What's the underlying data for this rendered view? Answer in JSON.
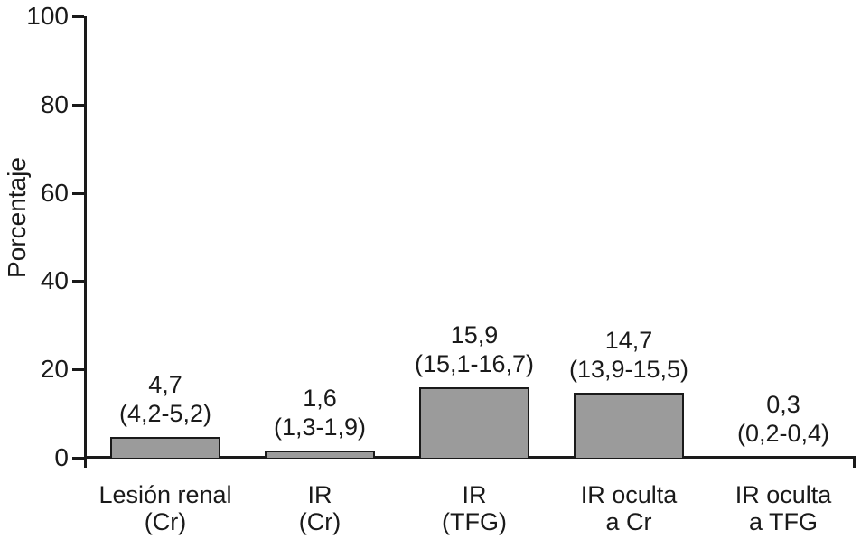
{
  "figure": {
    "background": "#ffffff"
  },
  "chart_data": {
    "type": "bar",
    "title": "",
    "ylabel": "Porcentaje",
    "xlabel": "",
    "ylim": [
      0,
      100
    ],
    "ytick_labels": [
      "0",
      "20",
      "40",
      "60",
      "80",
      "100"
    ],
    "ytick_values": [
      0,
      20,
      40,
      60,
      80,
      100
    ],
    "grid": false,
    "legend": null,
    "categories": [
      "Lesión renal (Cr)",
      "IR (Cr)",
      "IR (TFG)",
      "IR oculta a Cr",
      "IR oculta a TFG"
    ],
    "category_label_lines": [
      [
        "Lesión renal",
        "(Cr)"
      ],
      [
        "IR",
        "(Cr)"
      ],
      [
        "IR",
        "(TFG)"
      ],
      [
        "IR oculta",
        "a Cr"
      ],
      [
        "IR oculta",
        "a TFG"
      ]
    ],
    "values": [
      4.7,
      1.6,
      15.9,
      14.7,
      0.3
    ],
    "bar_label_lines": [
      [
        "4,7",
        "(4,2-5,2)"
      ],
      [
        "1,6",
        "(1,3-1,9)"
      ],
      [
        "15,9",
        "(15,1-16,7)"
      ],
      [
        "14,7",
        "(13,9-15,5)"
      ],
      [
        "0,3",
        "(0,2-0,4)"
      ]
    ],
    "colors": {
      "bar_fill": "#9b9b9b",
      "bar_border": "#1a1a1a",
      "axis": "#1a1a1a",
      "text": "#1a1a1a"
    }
  }
}
